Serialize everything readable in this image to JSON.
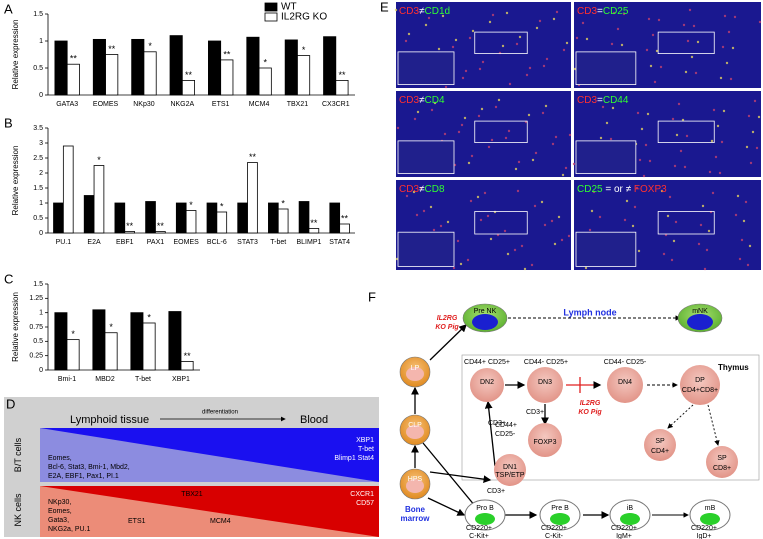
{
  "chart_data": [
    {
      "type": "bar",
      "panel": "A",
      "y_label": "Relative expression",
      "categories": [
        "GATA3",
        "EOMES",
        "NKp30",
        "NKG2A",
        "ETS1",
        "MCM4",
        "TBX21",
        "CX3CR1"
      ],
      "series": [
        {
          "name": "WT",
          "color": "#000000",
          "values": [
            1.0,
            1.03,
            1.03,
            1.1,
            1.0,
            1.07,
            1.02,
            1.08
          ]
        },
        {
          "name": "IL2RG KO",
          "color": "#ffffff",
          "values": [
            0.57,
            0.75,
            0.8,
            0.27,
            0.65,
            0.5,
            0.73,
            0.27
          ]
        }
      ],
      "significance": [
        "**",
        "**",
        "*",
        "**",
        "**",
        "*",
        "*",
        "**"
      ],
      "ylim": [
        0,
        1.5
      ],
      "yticks": [
        0,
        0.5,
        1,
        1.5
      ],
      "legend": "top-right"
    },
    {
      "type": "bar",
      "panel": "B",
      "y_label": "Relative expression",
      "categories": [
        "PU.1",
        "E2A",
        "EBF1",
        "PAX1",
        "EOMES",
        "BCL-6",
        "STAT3",
        "T-bet",
        "BLIMP1",
        "STAT4"
      ],
      "series": [
        {
          "color": "#000000",
          "values": [
            1.0,
            1.25,
            1.0,
            1.05,
            1.0,
            1.0,
            1.0,
            1.0,
            1.05,
            1.0
          ]
        },
        {
          "color": "#ffffff",
          "values": [
            2.9,
            2.25,
            0.05,
            0.05,
            0.75,
            0.7,
            2.35,
            0.8,
            0.15,
            0.3
          ]
        }
      ],
      "significance": [
        null,
        "*",
        "**",
        "**",
        "*",
        "*",
        "**",
        "*",
        "**",
        "**"
      ],
      "ylim": [
        0,
        3.5
      ],
      "yticks": [
        0,
        0.5,
        1,
        1.5,
        2,
        2.5,
        3,
        3.5
      ]
    },
    {
      "type": "bar",
      "panel": "C",
      "y_label": "Relative expression",
      "categories": [
        "Bmi-1",
        "MBD2",
        "T-bet",
        "XBP1"
      ],
      "series": [
        {
          "color": "#000000",
          "values": [
            1.0,
            1.05,
            1.0,
            1.02
          ]
        },
        {
          "color": "#ffffff",
          "values": [
            0.53,
            0.65,
            0.82,
            0.15
          ]
        }
      ],
      "significance": [
        "*",
        "*",
        "*",
        "**"
      ],
      "ylim": [
        0,
        1.5
      ],
      "yticks": [
        0,
        0.25,
        0.5,
        0.75,
        1,
        1.25,
        1.5
      ]
    }
  ],
  "panel_d": {
    "letter": "D",
    "header_left": "Lymphoid tissue",
    "arrow_label": "differentiation",
    "header_right": "Blood",
    "bt_label": [
      "B/T",
      "cells"
    ],
    "nk_label": [
      "NK",
      "cells"
    ],
    "bt_left": [
      "Eomes,",
      "Bcl-6, Stat3, Bmi-1, Mbd2,",
      "E2A, EBF1, Pax1, PI.1"
    ],
    "bt_right": [
      "XBP1",
      "T-bet",
      "Blimp1 Stat4"
    ],
    "nk_left": [
      "NKp30,",
      "Eomes,",
      "Gata3,",
      "NKG2a, PU.1"
    ],
    "nk_top": "TBX21",
    "nk_mid": [
      "ETS1",
      "MCM4"
    ],
    "nk_right": [
      "CXCR1",
      "CD57"
    ]
  },
  "panel_e": {
    "letter": "E",
    "panels": [
      {
        "parts": [
          {
            "text": "CD3",
            "color": "#ff3030"
          },
          {
            "text": "≠",
            "color": "#ffffff"
          },
          {
            "text": "CD1d",
            "color": "#30ff30"
          }
        ]
      },
      {
        "parts": [
          {
            "text": "CD3",
            "color": "#ff3030"
          },
          {
            "text": "=",
            "color": "#ffffff"
          },
          {
            "text": "CD25",
            "color": "#30ff30"
          }
        ]
      },
      {
        "parts": [
          {
            "text": "CD3",
            "color": "#ff3030"
          },
          {
            "text": "≠",
            "color": "#ffffff"
          },
          {
            "text": "CD4",
            "color": "#30ff30"
          }
        ]
      },
      {
        "parts": [
          {
            "text": "CD3",
            "color": "#ff3030"
          },
          {
            "text": "=",
            "color": "#ffffff"
          },
          {
            "text": "CD44",
            "color": "#30ff30"
          }
        ]
      },
      {
        "parts": [
          {
            "text": "CD3",
            "color": "#ff3030"
          },
          {
            "text": "≠",
            "color": "#ffffff"
          },
          {
            "text": "CD8",
            "color": "#30ff30"
          }
        ]
      },
      {
        "parts": [
          {
            "text": "CD25",
            "color": "#30ff30"
          },
          {
            "text": " = or ≠ ",
            "color": "#ffffff"
          },
          {
            "text": "FOXP3",
            "color": "#ff3030"
          }
        ]
      }
    ]
  },
  "panel_f": {
    "letter": "F",
    "ko_pig_1": [
      "IL2RG",
      "KO Pig"
    ],
    "lymph_node": "Lymph node",
    "thymus": "Thymus",
    "pre_nk": "Pre NK",
    "mnk": "mNK",
    "lp": "LP",
    "clp": "CLP",
    "hps": "HPS",
    "bone_marrow": [
      "Bone",
      "marrow"
    ],
    "dn2": "DN2",
    "dn2_markers": "CD44+ CD25+",
    "dn3": "DN3",
    "dn3_markers": "CD44- CD25+",
    "dn4": "DN4",
    "dn4_markers": "CD44- CD25-",
    "dp": "DP",
    "dp_markers": "CD4+CD8+",
    "cd3_a": "CD3+",
    "cd3_b": "CD3+",
    "cd3_c": "CD3+",
    "ko_pig_2": [
      "IL2RG",
      "KO Pig"
    ],
    "foxp3": "FOXP3",
    "dn1_markers": [
      "CD44+",
      "CD25-"
    ],
    "dn1": "DN1",
    "tsp": "TSP/ETP",
    "sp1": "SP",
    "sp1_markers": "CD4+",
    "sp2": "SP",
    "sp2_markers": "CD8+",
    "pro_b": "Pro B",
    "pre_b": "Pre B",
    "ib": "iB",
    "mb": "mB",
    "pro_b_markers": [
      "CD220+",
      "C-Kit+"
    ],
    "pre_b_markers": [
      "CD220+",
      "C-Kit-"
    ],
    "ib_markers": [
      "CD220+",
      "IgM+"
    ],
    "mb_markers": [
      "CD220+",
      "IgD+"
    ]
  }
}
